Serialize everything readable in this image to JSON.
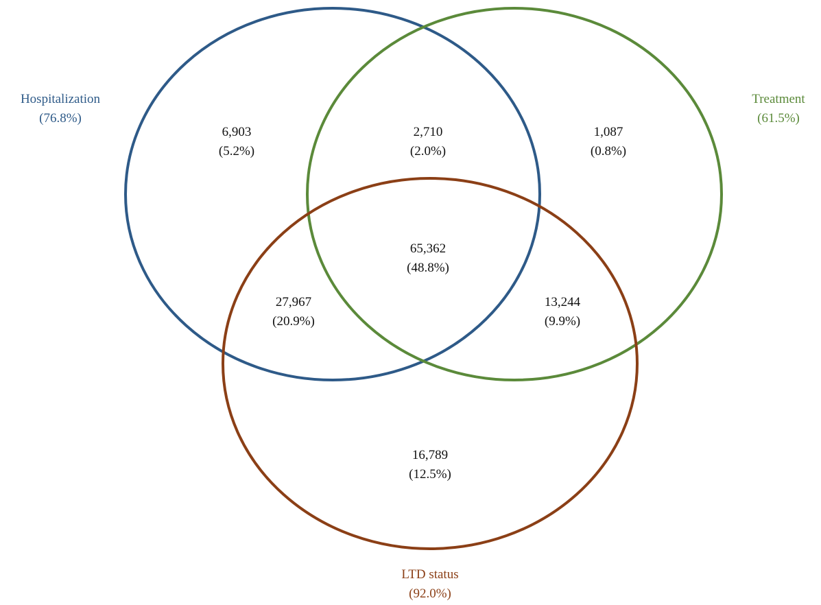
{
  "sets": [
    {
      "id": "hospitalization",
      "name": "Hospitalization",
      "percent": "(76.8%)",
      "color": "#2e5a88"
    },
    {
      "id": "treatment",
      "name": "Treatment",
      "percent": "(61.5%)",
      "color": "#5b8a3a"
    },
    {
      "id": "ltd",
      "name": "LTD status",
      "percent": "(92.0%)",
      "color": "#8b3f16"
    }
  ],
  "regions": [
    {
      "id": "hospitalization-only",
      "count": "6,903",
      "percent": "(5.2%)"
    },
    {
      "id": "hospitalization-treatment",
      "count": "2,710",
      "percent": "(2.0%)"
    },
    {
      "id": "treatment-only",
      "count": "1,087",
      "percent": "(0.8%)"
    },
    {
      "id": "all-three",
      "count": "65,362",
      "percent": "(48.8%)"
    },
    {
      "id": "hospitalization-ltd",
      "count": "27,967",
      "percent": "(20.9%)"
    },
    {
      "id": "treatment-ltd",
      "count": "13,244",
      "percent": "(9.9%)"
    },
    {
      "id": "ltd-only",
      "count": "16,789",
      "percent": "(12.5%)"
    }
  ]
}
